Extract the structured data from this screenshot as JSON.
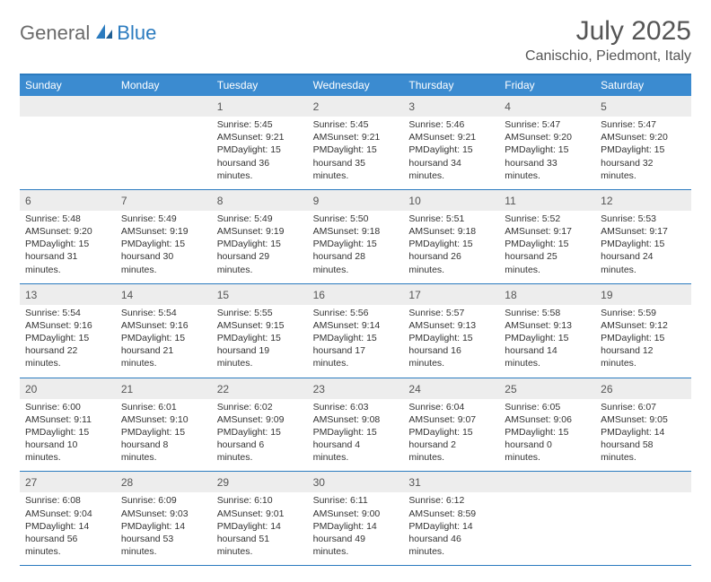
{
  "logo": {
    "text1": "General",
    "text2": "Blue"
  },
  "title": "July 2025",
  "location": "Canischio, Piedmont, Italy",
  "colors": {
    "header_bg": "#3b8bd0",
    "border": "#2b7bbf",
    "daynum_bg": "#ededed",
    "text": "#333333",
    "title_text": "#555555"
  },
  "dayHeaders": [
    "Sunday",
    "Monday",
    "Tuesday",
    "Wednesday",
    "Thursday",
    "Friday",
    "Saturday"
  ],
  "weeks": [
    [
      {
        "num": "",
        "lines": []
      },
      {
        "num": "",
        "lines": []
      },
      {
        "num": "1",
        "lines": [
          "Sunrise: 5:45 AM",
          "Sunset: 9:21 PM",
          "Daylight: 15 hours",
          "and 36 minutes."
        ]
      },
      {
        "num": "2",
        "lines": [
          "Sunrise: 5:45 AM",
          "Sunset: 9:21 PM",
          "Daylight: 15 hours",
          "and 35 minutes."
        ]
      },
      {
        "num": "3",
        "lines": [
          "Sunrise: 5:46 AM",
          "Sunset: 9:21 PM",
          "Daylight: 15 hours",
          "and 34 minutes."
        ]
      },
      {
        "num": "4",
        "lines": [
          "Sunrise: 5:47 AM",
          "Sunset: 9:20 PM",
          "Daylight: 15 hours",
          "and 33 minutes."
        ]
      },
      {
        "num": "5",
        "lines": [
          "Sunrise: 5:47 AM",
          "Sunset: 9:20 PM",
          "Daylight: 15 hours",
          "and 32 minutes."
        ]
      }
    ],
    [
      {
        "num": "6",
        "lines": [
          "Sunrise: 5:48 AM",
          "Sunset: 9:20 PM",
          "Daylight: 15 hours",
          "and 31 minutes."
        ]
      },
      {
        "num": "7",
        "lines": [
          "Sunrise: 5:49 AM",
          "Sunset: 9:19 PM",
          "Daylight: 15 hours",
          "and 30 minutes."
        ]
      },
      {
        "num": "8",
        "lines": [
          "Sunrise: 5:49 AM",
          "Sunset: 9:19 PM",
          "Daylight: 15 hours",
          "and 29 minutes."
        ]
      },
      {
        "num": "9",
        "lines": [
          "Sunrise: 5:50 AM",
          "Sunset: 9:18 PM",
          "Daylight: 15 hours",
          "and 28 minutes."
        ]
      },
      {
        "num": "10",
        "lines": [
          "Sunrise: 5:51 AM",
          "Sunset: 9:18 PM",
          "Daylight: 15 hours",
          "and 26 minutes."
        ]
      },
      {
        "num": "11",
        "lines": [
          "Sunrise: 5:52 AM",
          "Sunset: 9:17 PM",
          "Daylight: 15 hours",
          "and 25 minutes."
        ]
      },
      {
        "num": "12",
        "lines": [
          "Sunrise: 5:53 AM",
          "Sunset: 9:17 PM",
          "Daylight: 15 hours",
          "and 24 minutes."
        ]
      }
    ],
    [
      {
        "num": "13",
        "lines": [
          "Sunrise: 5:54 AM",
          "Sunset: 9:16 PM",
          "Daylight: 15 hours",
          "and 22 minutes."
        ]
      },
      {
        "num": "14",
        "lines": [
          "Sunrise: 5:54 AM",
          "Sunset: 9:16 PM",
          "Daylight: 15 hours",
          "and 21 minutes."
        ]
      },
      {
        "num": "15",
        "lines": [
          "Sunrise: 5:55 AM",
          "Sunset: 9:15 PM",
          "Daylight: 15 hours",
          "and 19 minutes."
        ]
      },
      {
        "num": "16",
        "lines": [
          "Sunrise: 5:56 AM",
          "Sunset: 9:14 PM",
          "Daylight: 15 hours",
          "and 17 minutes."
        ]
      },
      {
        "num": "17",
        "lines": [
          "Sunrise: 5:57 AM",
          "Sunset: 9:13 PM",
          "Daylight: 15 hours",
          "and 16 minutes."
        ]
      },
      {
        "num": "18",
        "lines": [
          "Sunrise: 5:58 AM",
          "Sunset: 9:13 PM",
          "Daylight: 15 hours",
          "and 14 minutes."
        ]
      },
      {
        "num": "19",
        "lines": [
          "Sunrise: 5:59 AM",
          "Sunset: 9:12 PM",
          "Daylight: 15 hours",
          "and 12 minutes."
        ]
      }
    ],
    [
      {
        "num": "20",
        "lines": [
          "Sunrise: 6:00 AM",
          "Sunset: 9:11 PM",
          "Daylight: 15 hours",
          "and 10 minutes."
        ]
      },
      {
        "num": "21",
        "lines": [
          "Sunrise: 6:01 AM",
          "Sunset: 9:10 PM",
          "Daylight: 15 hours",
          "and 8 minutes."
        ]
      },
      {
        "num": "22",
        "lines": [
          "Sunrise: 6:02 AM",
          "Sunset: 9:09 PM",
          "Daylight: 15 hours",
          "and 6 minutes."
        ]
      },
      {
        "num": "23",
        "lines": [
          "Sunrise: 6:03 AM",
          "Sunset: 9:08 PM",
          "Daylight: 15 hours",
          "and 4 minutes."
        ]
      },
      {
        "num": "24",
        "lines": [
          "Sunrise: 6:04 AM",
          "Sunset: 9:07 PM",
          "Daylight: 15 hours",
          "and 2 minutes."
        ]
      },
      {
        "num": "25",
        "lines": [
          "Sunrise: 6:05 AM",
          "Sunset: 9:06 PM",
          "Daylight: 15 hours",
          "and 0 minutes."
        ]
      },
      {
        "num": "26",
        "lines": [
          "Sunrise: 6:07 AM",
          "Sunset: 9:05 PM",
          "Daylight: 14 hours",
          "and 58 minutes."
        ]
      }
    ],
    [
      {
        "num": "27",
        "lines": [
          "Sunrise: 6:08 AM",
          "Sunset: 9:04 PM",
          "Daylight: 14 hours",
          "and 56 minutes."
        ]
      },
      {
        "num": "28",
        "lines": [
          "Sunrise: 6:09 AM",
          "Sunset: 9:03 PM",
          "Daylight: 14 hours",
          "and 53 minutes."
        ]
      },
      {
        "num": "29",
        "lines": [
          "Sunrise: 6:10 AM",
          "Sunset: 9:01 PM",
          "Daylight: 14 hours",
          "and 51 minutes."
        ]
      },
      {
        "num": "30",
        "lines": [
          "Sunrise: 6:11 AM",
          "Sunset: 9:00 PM",
          "Daylight: 14 hours",
          "and 49 minutes."
        ]
      },
      {
        "num": "31",
        "lines": [
          "Sunrise: 6:12 AM",
          "Sunset: 8:59 PM",
          "Daylight: 14 hours",
          "and 46 minutes."
        ]
      },
      {
        "num": "",
        "lines": []
      },
      {
        "num": "",
        "lines": []
      }
    ]
  ]
}
